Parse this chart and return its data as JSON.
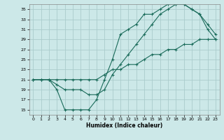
{
  "xlabel": "Humidex (Indice chaleur)",
  "bg_color": "#cce8e8",
  "grid_color": "#aacccc",
  "line_color": "#1a6b5a",
  "xlim": [
    -0.5,
    23.5
  ],
  "ylim": [
    14,
    36
  ],
  "yticks": [
    15,
    17,
    19,
    21,
    23,
    25,
    27,
    29,
    31,
    33,
    35
  ],
  "xticks": [
    0,
    1,
    2,
    3,
    4,
    5,
    6,
    7,
    8,
    9,
    10,
    11,
    12,
    13,
    14,
    15,
    16,
    17,
    18,
    19,
    20,
    21,
    22,
    23
  ],
  "series1_x": [
    0,
    1,
    2,
    3,
    4,
    5,
    6,
    7,
    8,
    9,
    10,
    11,
    12,
    13,
    14,
    15,
    16,
    17,
    18,
    19,
    20,
    21,
    22,
    23
  ],
  "series1_y": [
    21,
    21,
    21,
    19,
    15,
    15,
    15,
    15,
    17,
    21,
    25,
    30,
    31,
    32,
    34,
    34,
    35,
    36,
    36,
    36,
    35,
    34,
    31,
    29
  ],
  "series2_x": [
    0,
    1,
    2,
    3,
    4,
    5,
    6,
    7,
    8,
    9,
    10,
    11,
    12,
    13,
    14,
    15,
    16,
    17,
    18,
    19,
    20,
    21,
    22,
    23
  ],
  "series2_y": [
    21,
    21,
    21,
    20,
    19,
    19,
    19,
    18,
    18,
    19,
    22,
    24,
    26,
    28,
    30,
    32,
    34,
    35,
    36,
    36,
    35,
    34,
    32,
    30
  ],
  "series3_x": [
    0,
    1,
    2,
    3,
    4,
    5,
    6,
    7,
    8,
    9,
    10,
    11,
    12,
    13,
    14,
    15,
    16,
    17,
    18,
    19,
    20,
    21,
    22,
    23
  ],
  "series3_y": [
    21,
    21,
    21,
    21,
    21,
    21,
    21,
    21,
    21,
    22,
    23,
    23,
    24,
    24,
    25,
    26,
    26,
    27,
    27,
    28,
    28,
    29,
    29,
    29
  ]
}
